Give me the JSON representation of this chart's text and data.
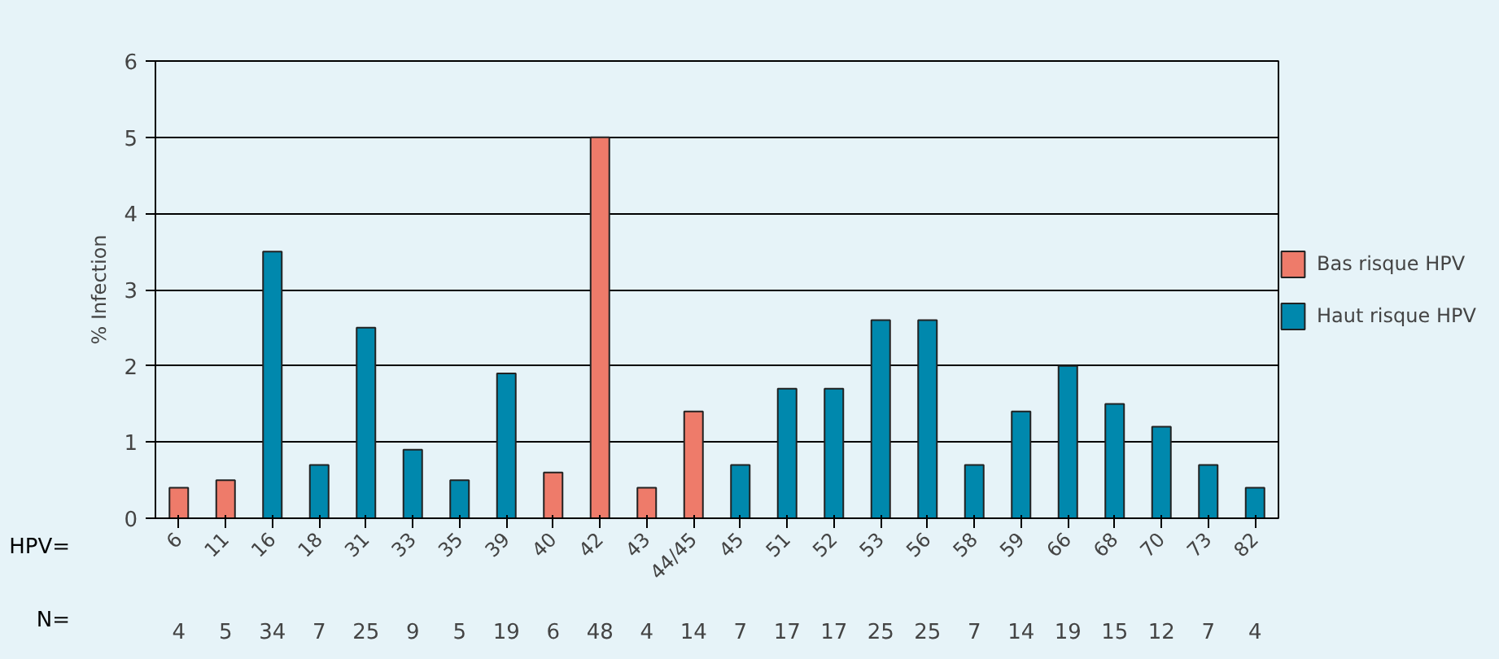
{
  "chart_data": {
    "type": "bar",
    "ylabel": "% Infection",
    "xlabel": "HPV=",
    "categories": [
      "6",
      "11",
      "16",
      "18",
      "31",
      "33",
      "35",
      "39",
      "40",
      "42",
      "43",
      "44/45",
      "45",
      "51",
      "52",
      "53",
      "56",
      "58",
      "59",
      "66",
      "68",
      "70",
      "73",
      "82"
    ],
    "series": [
      {
        "name": "Bas risque HPV",
        "color": "#ee7b6a",
        "values": [
          0.4,
          0.5,
          null,
          null,
          null,
          null,
          null,
          null,
          0.6,
          5.0,
          0.4,
          1.4,
          null,
          null,
          null,
          null,
          null,
          null,
          null,
          null,
          null,
          null,
          null,
          null
        ]
      },
      {
        "name": "Haut risque HPV",
        "color": "#0088ad",
        "values": [
          null,
          null,
          3.5,
          0.7,
          2.5,
          0.9,
          0.5,
          1.9,
          null,
          null,
          null,
          null,
          0.7,
          1.7,
          1.7,
          2.6,
          2.6,
          0.7,
          1.4,
          2.0,
          1.5,
          1.2,
          0.7,
          0.4
        ]
      }
    ],
    "ylim": [
      0,
      6
    ],
    "yticks": [
      0,
      1,
      2,
      3,
      4,
      5,
      6
    ],
    "grid": "y",
    "legend": "right",
    "annotations": [
      "N=",
      "4",
      "5",
      "34",
      "7",
      "25",
      "9",
      "5",
      "19",
      "6",
      "48",
      "4",
      "14",
      "7",
      "17",
      "17",
      "25",
      "25",
      "7",
      "14",
      "19",
      "15",
      "12",
      "7",
      "4"
    ]
  }
}
